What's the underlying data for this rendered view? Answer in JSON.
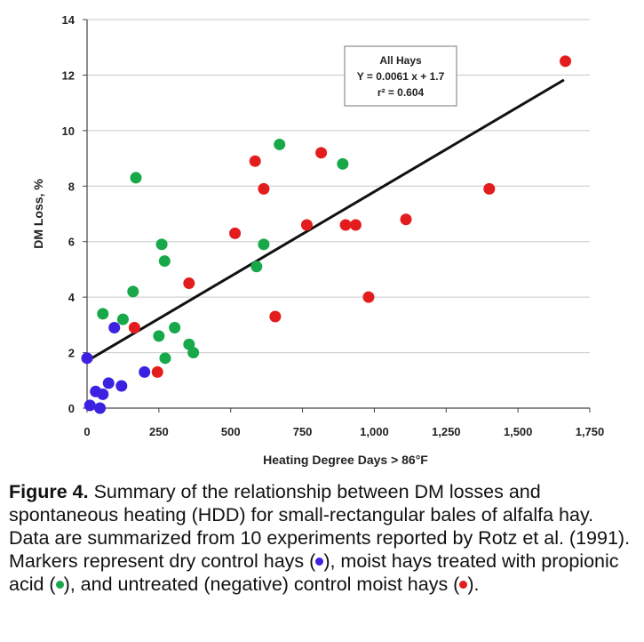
{
  "chart_data": {
    "type": "scatter",
    "xlabel": "Heating Degree Days > 86°F",
    "ylabel": "DM Loss, %",
    "xlim": [
      0,
      1750
    ],
    "ylim": [
      0,
      14
    ],
    "xticks": [
      0,
      250,
      500,
      750,
      1000,
      1250,
      1500,
      1750
    ],
    "xtick_labels": [
      "0",
      "250",
      "500",
      "750",
      "1,000",
      "1,250",
      "1,500",
      "1,750"
    ],
    "yticks": [
      0,
      2,
      4,
      6,
      8,
      10,
      12,
      14
    ],
    "ytick_labels": [
      "0",
      "2",
      "4",
      "6",
      "8",
      "10",
      "12",
      "14"
    ],
    "grid": "horizontal",
    "series": [
      {
        "color": "#3b22e0",
        "points": [
          {
            "x": 0,
            "y": 1.8
          },
          {
            "x": 10,
            "y": 0.1
          },
          {
            "x": 30,
            "y": 0.6
          },
          {
            "x": 45,
            "y": 0.0
          },
          {
            "x": 55,
            "y": 0.5
          },
          {
            "x": 75,
            "y": 0.9
          },
          {
            "x": 95,
            "y": 2.9
          },
          {
            "x": 120,
            "y": 0.8
          },
          {
            "x": 200,
            "y": 1.3
          }
        ]
      },
      {
        "color": "#17a84a",
        "points": [
          {
            "x": 55,
            "y": 3.4
          },
          {
            "x": 125,
            "y": 3.2
          },
          {
            "x": 160,
            "y": 4.2
          },
          {
            "x": 170,
            "y": 8.3
          },
          {
            "x": 250,
            "y": 2.6
          },
          {
            "x": 260,
            "y": 5.9
          },
          {
            "x": 270,
            "y": 5.3
          },
          {
            "x": 272,
            "y": 1.8
          },
          {
            "x": 305,
            "y": 2.9
          },
          {
            "x": 355,
            "y": 2.3
          },
          {
            "x": 370,
            "y": 2.0
          },
          {
            "x": 590,
            "y": 5.1
          },
          {
            "x": 615,
            "y": 5.9
          },
          {
            "x": 670,
            "y": 9.5
          },
          {
            "x": 890,
            "y": 8.8
          }
        ]
      },
      {
        "color": "#e31d1d",
        "points": [
          {
            "x": 165,
            "y": 2.9
          },
          {
            "x": 245,
            "y": 1.3
          },
          {
            "x": 355,
            "y": 4.5
          },
          {
            "x": 515,
            "y": 6.3
          },
          {
            "x": 585,
            "y": 8.9
          },
          {
            "x": 615,
            "y": 7.9
          },
          {
            "x": 655,
            "y": 3.3
          },
          {
            "x": 765,
            "y": 6.6
          },
          {
            "x": 815,
            "y": 9.2
          },
          {
            "x": 900,
            "y": 6.6
          },
          {
            "x": 935,
            "y": 6.6
          },
          {
            "x": 980,
            "y": 4.0
          },
          {
            "x": 1110,
            "y": 6.8
          },
          {
            "x": 1400,
            "y": 7.9
          },
          {
            "x": 1665,
            "y": 12.5
          }
        ]
      }
    ],
    "trendline": {
      "slope": 0.0061,
      "intercept": 1.7,
      "x_range": [
        0,
        1660
      ],
      "color": "#111111"
    },
    "annotation": {
      "lines": [
        "All Hays",
        "Y = 0.0061 x + 1.7",
        "r² = 0.604"
      ]
    }
  },
  "caption": {
    "label": "Figure 4.",
    "text_part1": " Summary of the relationship between DM losses and spontaneous heating (HDD) for small-rectangular bales of alfalfa hay. Data are summarized from 10 experiments reported by Rotz et al. (1991). Markers represent dry control hays (",
    "text_part2": "), moist hays treated with propionic acid (",
    "text_part3": "), and untreated (negative) control moist hays (",
    "text_part4": ").",
    "dot_colors": [
      "#3b22e0",
      "#17a84a",
      "#e31d1d"
    ]
  }
}
